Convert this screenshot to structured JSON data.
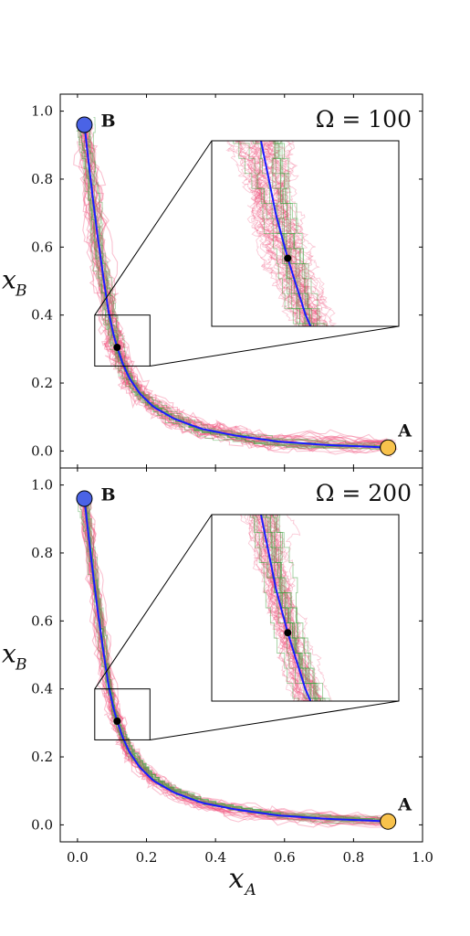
{
  "chart_data": [
    {
      "type": "line",
      "panel": "top",
      "omega_label": "Ω = 100",
      "xlim": [
        -0.05,
        1.0
      ],
      "ylim": [
        -0.05,
        1.05
      ],
      "xticks": [
        "0.0",
        "0.2",
        "0.4",
        "0.6",
        "0.8",
        "1.0"
      ],
      "yticks": [
        "0.0",
        "0.2",
        "0.4",
        "0.6",
        "0.8",
        "1.0"
      ],
      "ylabel_main": "x",
      "ylabel_sub": "B",
      "xlabel_main": "",
      "xlabel_sub": "",
      "point_B": {
        "label": "B",
        "x": 0.02,
        "y": 0.96,
        "color": "#4a63e6"
      },
      "point_A": {
        "label": "A",
        "x": 0.9,
        "y": 0.01,
        "color": "#f8c24c"
      },
      "midpoint": {
        "x": 0.115,
        "y": 0.305
      },
      "curve": {
        "color": "#1a1aff",
        "x": [
          0.02,
          0.03,
          0.045,
          0.06,
          0.075,
          0.09,
          0.105,
          0.115,
          0.13,
          0.15,
          0.18,
          0.22,
          0.28,
          0.36,
          0.46,
          0.58,
          0.72,
          0.9
        ],
        "y": [
          0.96,
          0.87,
          0.74,
          0.62,
          0.51,
          0.41,
          0.34,
          0.305,
          0.26,
          0.215,
          0.17,
          0.13,
          0.095,
          0.065,
          0.045,
          0.028,
          0.018,
          0.01
        ]
      },
      "inset_box": {
        "xlim": [
          0.05,
          0.21
        ],
        "ylim": [
          0.25,
          0.4
        ]
      },
      "trajectory_colors": {
        "stochastic": "#f0507a",
        "lattice": "#3da13d"
      },
      "spread": 0.045
    },
    {
      "type": "line",
      "panel": "bottom",
      "omega_label": "Ω = 200",
      "xlim": [
        -0.05,
        1.0
      ],
      "ylim": [
        -0.05,
        1.05
      ],
      "xticks": [
        "0.0",
        "0.2",
        "0.4",
        "0.6",
        "0.8",
        "1.0"
      ],
      "yticks": [
        "0.0",
        "0.2",
        "0.4",
        "0.6",
        "0.8",
        "1.0"
      ],
      "ylabel_main": "x",
      "ylabel_sub": "B",
      "xlabel_main": "x",
      "xlabel_sub": "A",
      "point_B": {
        "label": "B",
        "x": 0.02,
        "y": 0.96,
        "color": "#4a63e6"
      },
      "point_A": {
        "label": "A",
        "x": 0.9,
        "y": 0.01,
        "color": "#f8c24c"
      },
      "midpoint": {
        "x": 0.115,
        "y": 0.305
      },
      "curve": {
        "color": "#1a1aff",
        "x": [
          0.02,
          0.03,
          0.045,
          0.06,
          0.075,
          0.09,
          0.105,
          0.115,
          0.13,
          0.15,
          0.18,
          0.22,
          0.28,
          0.36,
          0.46,
          0.58,
          0.72,
          0.9
        ],
        "y": [
          0.96,
          0.87,
          0.74,
          0.62,
          0.51,
          0.41,
          0.34,
          0.305,
          0.26,
          0.215,
          0.17,
          0.13,
          0.095,
          0.065,
          0.045,
          0.028,
          0.018,
          0.01
        ]
      },
      "inset_box": {
        "xlim": [
          0.05,
          0.21
        ],
        "ylim": [
          0.25,
          0.4
        ]
      },
      "trajectory_colors": {
        "stochastic": "#f0507a",
        "lattice": "#3da13d"
      },
      "spread": 0.03
    }
  ]
}
